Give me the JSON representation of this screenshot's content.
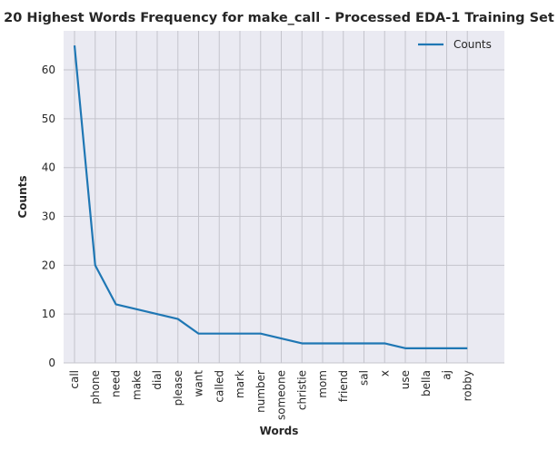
{
  "chart_data": {
    "type": "line",
    "title": "20 Highest Words Frequency for make_call - Processed EDA-1 Training Set",
    "xlabel": "Words",
    "ylabel": "Counts",
    "categories": [
      "call",
      "phone",
      "need",
      "make",
      "dial",
      "please",
      "want",
      "called",
      "mark",
      "number",
      "someone",
      "christie",
      "mom",
      "friend",
      "sal",
      "x",
      "use",
      "bella",
      "aj",
      "robby"
    ],
    "series": [
      {
        "name": "Counts",
        "values": [
          65,
          20,
          12,
          11,
          10,
          9,
          6,
          6,
          6,
          6,
          5,
          4,
          4,
          4,
          4,
          4,
          3,
          3,
          3,
          3
        ]
      }
    ],
    "ylim": [
      0,
      68
    ],
    "yticks": [
      0,
      10,
      20,
      30,
      40,
      50,
      60
    ],
    "grid": true,
    "legend_position": "top-right",
    "colors": {
      "line": "#1f77b4",
      "plot_bg": "#eaeaf2",
      "grid": "#c4c4cc"
    }
  }
}
